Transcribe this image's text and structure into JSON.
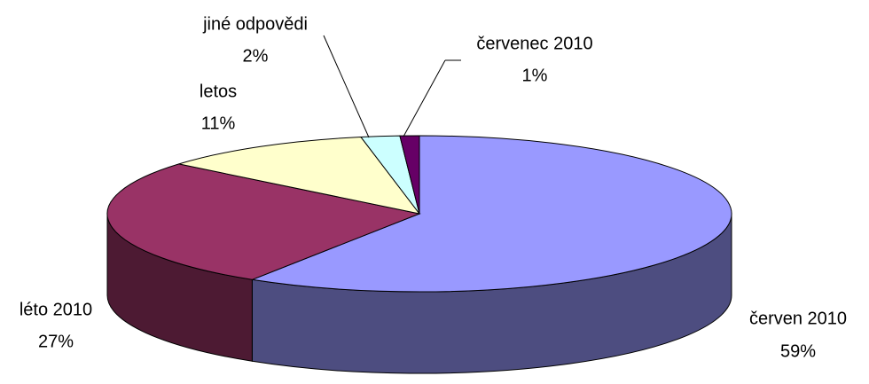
{
  "chart_data": {
    "type": "pie3d",
    "categories": [
      "červen 2010",
      "léto 2010",
      "letos",
      "jiné odpovědi",
      "červenec 2010"
    ],
    "values": [
      59,
      27,
      11,
      2,
      1
    ],
    "value_labels": [
      "59%",
      "27%",
      "11%",
      "2%",
      "1%"
    ],
    "colors": [
      "#9999ff",
      "#993366",
      "#ffffcc",
      "#ccffff",
      "#660066"
    ]
  }
}
